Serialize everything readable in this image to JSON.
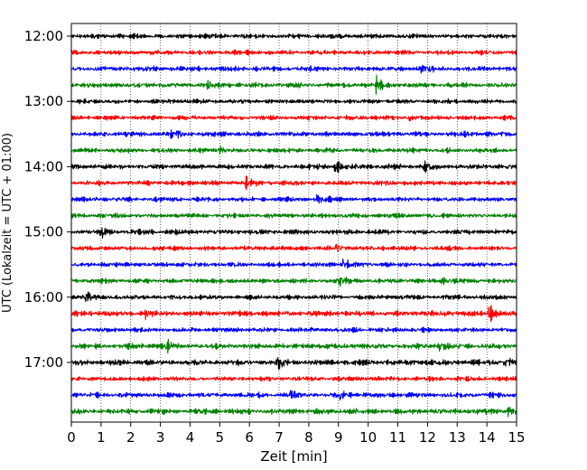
{
  "chart_data": {
    "type": "line",
    "title": "",
    "xlabel": "Zeit  [min]",
    "ylabel": "UTC (Lokalzeit = UTC + 01:00)",
    "xlim": [
      0,
      15
    ],
    "x_ticks": [
      "0",
      "1",
      "2",
      "3",
      "4",
      "5",
      "6",
      "7",
      "8",
      "9",
      "10",
      "11",
      "12",
      "13",
      "14",
      "15"
    ],
    "y_ticks": [
      "12:00",
      "13:00",
      "14:00",
      "15:00",
      "16:00",
      "17:00"
    ],
    "grid": "vertical dotted at each minute",
    "trace_interval_min": 15,
    "first_trace": "12:00",
    "trace_count": 24,
    "trace_colors": [
      "#000000",
      "#ff0000",
      "#0000ff",
      "#008000"
    ],
    "series": [
      {
        "start": "12:00",
        "color": "#000000",
        "noise": 0.55,
        "events": []
      },
      {
        "start": "12:15",
        "color": "#ff0000",
        "noise": 0.55,
        "events": []
      },
      {
        "start": "12:30",
        "color": "#0000ff",
        "noise": 0.6,
        "events": [
          {
            "t": 11.8,
            "amp": 1.1
          }
        ]
      },
      {
        "start": "12:45",
        "color": "#008000",
        "noise": 0.6,
        "events": [
          {
            "t": 4.6,
            "amp": 1.0
          },
          {
            "t": 10.3,
            "amp": 1.2
          }
        ]
      },
      {
        "start": "13:00",
        "color": "#000000",
        "noise": 0.55,
        "events": []
      },
      {
        "start": "13:15",
        "color": "#ff0000",
        "noise": 0.55,
        "events": [
          {
            "t": 11.4,
            "amp": 1.0
          }
        ]
      },
      {
        "start": "13:30",
        "color": "#0000ff",
        "noise": 0.6,
        "events": [
          {
            "t": 3.4,
            "amp": 1.1
          }
        ]
      },
      {
        "start": "13:45",
        "color": "#008000",
        "noise": 0.55,
        "events": [
          {
            "t": 5.0,
            "amp": 1.0
          }
        ]
      },
      {
        "start": "14:00",
        "color": "#000000",
        "noise": 0.6,
        "events": [
          {
            "t": 8.9,
            "amp": 1.3
          },
          {
            "t": 11.9,
            "amp": 1.1
          }
        ]
      },
      {
        "start": "14:15",
        "color": "#ff0000",
        "noise": 0.6,
        "events": [
          {
            "t": 5.9,
            "amp": 1.1
          }
        ]
      },
      {
        "start": "14:30",
        "color": "#0000ff",
        "noise": 0.55,
        "events": [
          {
            "t": 8.3,
            "amp": 1.0
          }
        ]
      },
      {
        "start": "14:45",
        "color": "#008000",
        "noise": 0.55,
        "events": []
      },
      {
        "start": "15:00",
        "color": "#000000",
        "noise": 0.6,
        "events": [
          {
            "t": 1.0,
            "amp": 1.0
          }
        ]
      },
      {
        "start": "15:15",
        "color": "#ff0000",
        "noise": 0.55,
        "events": [
          {
            "t": 8.9,
            "amp": 1.2
          }
        ]
      },
      {
        "start": "15:30",
        "color": "#0000ff",
        "noise": 0.55,
        "events": [
          {
            "t": 9.2,
            "amp": 1.2
          }
        ]
      },
      {
        "start": "15:45",
        "color": "#008000",
        "noise": 0.55,
        "events": [
          {
            "t": 9.0,
            "amp": 1.5
          },
          {
            "t": 12.5,
            "amp": 1.2
          }
        ]
      },
      {
        "start": "16:00",
        "color": "#000000",
        "noise": 0.55,
        "events": [
          {
            "t": 0.5,
            "amp": 1.1
          }
        ]
      },
      {
        "start": "16:15",
        "color": "#ff0000",
        "noise": 0.65,
        "events": [
          {
            "t": 14.1,
            "amp": 1.6
          },
          {
            "t": 2.5,
            "amp": 1.0
          }
        ]
      },
      {
        "start": "16:30",
        "color": "#0000ff",
        "noise": 0.55,
        "events": []
      },
      {
        "start": "16:45",
        "color": "#008000",
        "noise": 0.65,
        "events": [
          {
            "t": 3.2,
            "amp": 1.1
          },
          {
            "t": 12.4,
            "amp": 1.0
          }
        ]
      },
      {
        "start": "17:00",
        "color": "#000000",
        "noise": 0.65,
        "events": [
          {
            "t": 7.0,
            "amp": 1.2
          },
          {
            "t": 14.6,
            "amp": 1.1
          }
        ]
      },
      {
        "start": "17:15",
        "color": "#ff0000",
        "noise": 0.55,
        "events": []
      },
      {
        "start": "17:30",
        "color": "#0000ff",
        "noise": 0.6,
        "events": [
          {
            "t": 7.4,
            "amp": 1.1
          },
          {
            "t": 9.1,
            "amp": 1.0
          }
        ]
      },
      {
        "start": "17:45",
        "color": "#008000",
        "noise": 0.65,
        "events": [
          {
            "t": 14.7,
            "amp": 1.1
          }
        ]
      }
    ]
  }
}
